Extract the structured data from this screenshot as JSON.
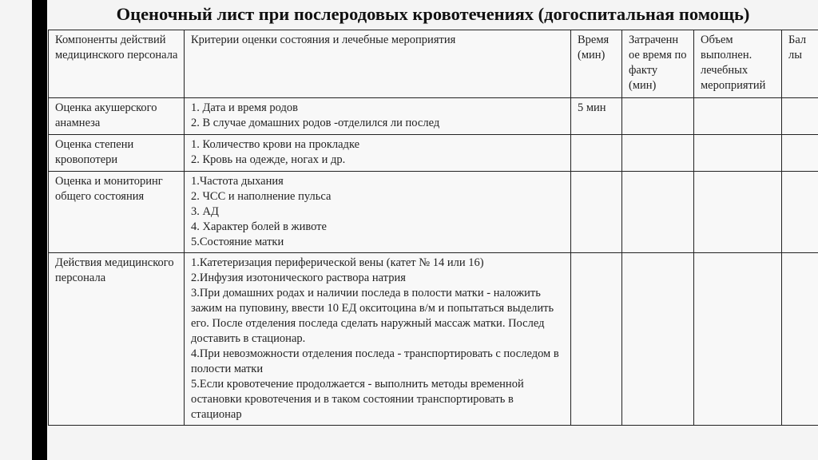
{
  "title": "Оценочный лист при послеродовых кровотечениях (догоспитальная помощь)",
  "headers": [
    "Компоненты действий медицинского персонала",
    "Критерии оценки состояния и лечебные мероприятия",
    "Время (мин)",
    "Затраченн ое время по факту (мин)",
    "Объем выполнен. лечебных мероприятий",
    "Бал лы"
  ],
  "rows": [
    {
      "component": "Оценка акушерского анамнеза",
      "criteria": [
        "1. Дата и время родов",
        "2. В случае домашних родов -отделился ли послед"
      ],
      "time": "5 мин"
    },
    {
      "component": "Оценка степени кровопотери",
      "criteria": [
        "1. Количество крови на прокладке",
        "2. Кровь на одежде, ногах и др."
      ],
      "time": ""
    },
    {
      "component": "Оценка и мониторинг общего состояния",
      "criteria": [
        "1.Частота дыхания",
        "2. ЧСС и наполнение пульса",
        "3. АД",
        "4. Характер болей в животе",
        "5.Состояние матки"
      ],
      "time": ""
    },
    {
      "component": "Действия медицинского персонала",
      "criteria": [
        "1.Катетеризация периферической вены (катет № 14 или 16)",
        "2.Инфузия изотонического раствора натрия",
        "3.При домашних родах и наличии последа в полости матки - наложить зажим на пуповину, ввести 10 ЕД окситоцина в/м и попытаться выделить его. После отделения последа сделать наружный массаж матки. Послед доставить в стационар.",
        "4.При невозможности отделения последа - транспортировать с последом в полости матки",
        "5.Если кровотечение продолжается - выполнить методы временной остановки кровотечения и в таком состоянии транспортировать в стационар"
      ],
      "time": ""
    }
  ]
}
